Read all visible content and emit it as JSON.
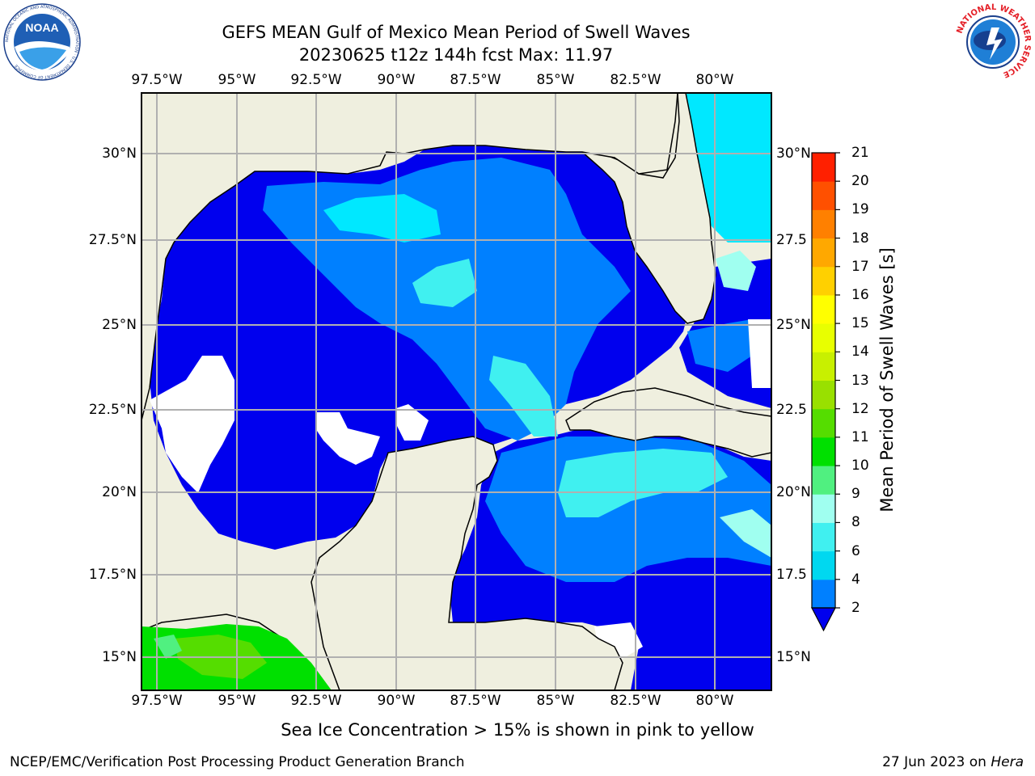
{
  "header": {
    "title_line1": "GEFS MEAN Gulf of Mexico Mean Period of Swell Waves",
    "title_line2": "20230625 t12z 144h fcst   Max: 11.97"
  },
  "logos": {
    "left": {
      "name": "NOAA",
      "ring_text": "NATIONAL OCEANIC AND ATMOSPHERIC ADMINISTRATION · U.S. DEPARTMENT OF COMMERCE"
    },
    "right": {
      "ring_text": "NATIONAL WEATHER SERVICE"
    }
  },
  "map": {
    "lon_labels": [
      "97.5°W",
      "95°W",
      "92.5°W",
      "90°W",
      "87.5°W",
      "85°W",
      "82.5°W",
      "80°W"
    ],
    "lat_labels_left": [
      "30°N",
      "27.5°N",
      "25°N",
      "22.5°N",
      "20°N",
      "17.5°N",
      "15°N"
    ],
    "lat_labels_right": [
      "30°N",
      "27.5",
      "25°N",
      "22.5",
      "20°N",
      "17.5",
      "15°N"
    ],
    "colors": {
      "land": "#efefdf",
      "grid": "#b0b0b0",
      "ocean_default": "#0000ee"
    }
  },
  "colorbar": {
    "label": "Mean Period of Swell Waves [s]",
    "ticks": [
      "2",
      "4",
      "6",
      "8",
      "9",
      "10",
      "11",
      "12",
      "13",
      "14",
      "15",
      "16",
      "17",
      "18",
      "19",
      "20",
      "21"
    ],
    "colors": [
      "#0000ee",
      "#0080ff",
      "#00d8f0",
      "#40f0f0",
      "#a0fff0",
      "#50f080",
      "#00e000",
      "#55dd00",
      "#99e000",
      "#c8f000",
      "#e8ff00",
      "#ffff00",
      "#ffd000",
      "#ffa800",
      "#ff8000",
      "#ff5000",
      "#ff2000",
      "#ff0000"
    ]
  },
  "note": "Sea Ice Concentration > 15% is shown in pink to yellow",
  "footer": {
    "left": "NCEP/EMC/Verification Post Processing Product Generation Branch",
    "right_prefix": "27 Jun 2023 on ",
    "right_host": "Hera"
  }
}
